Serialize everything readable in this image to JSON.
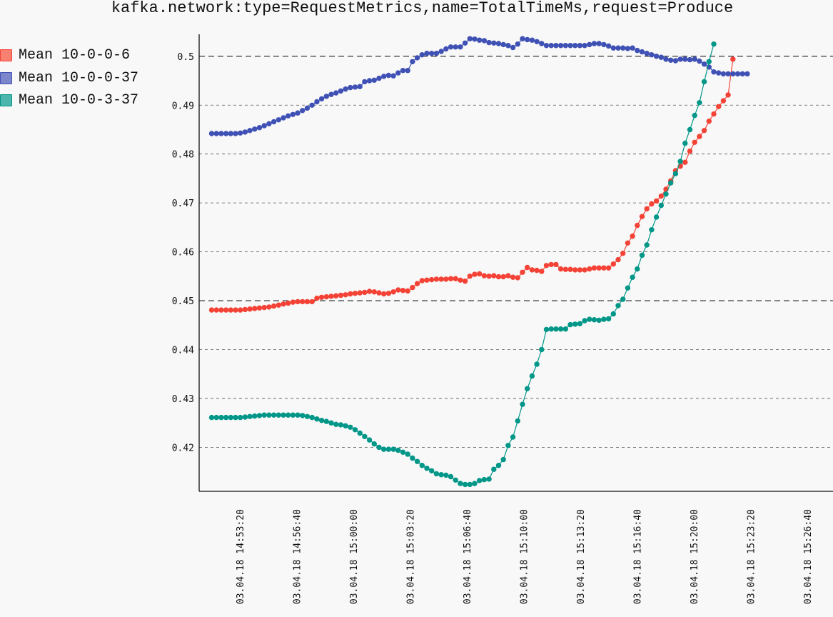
{
  "chart_data": {
    "type": "line",
    "title": "kafka.network:type=RequestMetrics,name=TotalTimeMs,request=Produce",
    "xlabel": "",
    "ylabel": "",
    "ylim": [
      0.411,
      0.5045
    ],
    "y_ticks": [
      0.42,
      0.43,
      0.44,
      0.45,
      0.46,
      0.47,
      0.48,
      0.49,
      0.5
    ],
    "y_major_ticks": [
      0.45,
      0.5
    ],
    "x_ticks": [
      "03.04.18 14:53:20",
      "03.04.18 14:56:40",
      "03.04.18 15:00:00",
      "03.04.18 15:03:20",
      "03.04.18 15:06:40",
      "03.04.18 15:10:00",
      "03.04.18 15:13:20",
      "03.04.18 15:16:40",
      "03.04.18 15:20:00",
      "03.04.18 15:23:20",
      "03.04.18 15:26:40"
    ],
    "x_start": "03.04.18 14:52:17",
    "x_interval_seconds": 15,
    "grid": "horizontal dashed",
    "legend_placement": "left",
    "series": [
      {
        "name": "Mean 10-0-0-6",
        "color": "#f44336",
        "fill": "#f88070",
        "values": [
          0.4481,
          0.4481,
          0.4481,
          0.4481,
          0.4481,
          0.4481,
          0.4481,
          0.4482,
          0.4483,
          0.4484,
          0.4485,
          0.4486,
          0.4487,
          0.4489,
          0.4491,
          0.4493,
          0.4495,
          0.4497,
          0.4498,
          0.4498,
          0.4498,
          0.4498,
          0.4505,
          0.4507,
          0.4508,
          0.4509,
          0.451,
          0.4511,
          0.4512,
          0.4514,
          0.4515,
          0.4516,
          0.4517,
          0.4519,
          0.4518,
          0.4516,
          0.4514,
          0.4515,
          0.4518,
          0.4522,
          0.4521,
          0.452,
          0.4527,
          0.4535,
          0.4541,
          0.4542,
          0.4543,
          0.4544,
          0.4544,
          0.4544,
          0.4545,
          0.4545,
          0.4542,
          0.454,
          0.455,
          0.4554,
          0.4555,
          0.4551,
          0.455,
          0.4551,
          0.4549,
          0.4549,
          0.4551,
          0.4548,
          0.4547,
          0.4558,
          0.4568,
          0.4563,
          0.4562,
          0.456,
          0.4572,
          0.4574,
          0.4574,
          0.4565,
          0.4564,
          0.4564,
          0.4563,
          0.4563,
          0.4563,
          0.4565,
          0.4567,
          0.4567,
          0.4567,
          0.4567,
          0.4575,
          0.4584,
          0.4597,
          0.4618,
          0.4632,
          0.4654,
          0.4672,
          0.4688,
          0.4698,
          0.4704,
          0.4714,
          0.4728,
          0.4745,
          0.4766,
          0.4775,
          0.4783,
          0.4806,
          0.4824,
          0.4836,
          0.4848,
          0.4867,
          0.4882,
          0.4897,
          0.4909,
          0.4921,
          0.4994
        ]
      },
      {
        "name": "Mean 10-0-0-37",
        "color": "#3f51b5",
        "fill": "#7c86cc",
        "values": [
          0.4842,
          0.4842,
          0.4842,
          0.4842,
          0.4842,
          0.4842,
          0.4843,
          0.4845,
          0.4848,
          0.4851,
          0.4854,
          0.4858,
          0.4862,
          0.4866,
          0.487,
          0.4874,
          0.4878,
          0.4881,
          0.4884,
          0.4889,
          0.4894,
          0.49,
          0.4907,
          0.4913,
          0.4918,
          0.4922,
          0.4925,
          0.4929,
          0.4933,
          0.4936,
          0.4937,
          0.4938,
          0.4948,
          0.495,
          0.4951,
          0.4955,
          0.4959,
          0.4961,
          0.496,
          0.4966,
          0.4971,
          0.4971,
          0.4989,
          0.4997,
          0.5003,
          0.5006,
          0.5006,
          0.5006,
          0.501,
          0.5015,
          0.5019,
          0.5019,
          0.5019,
          0.5027,
          0.5036,
          0.5035,
          0.5033,
          0.5032,
          0.5028,
          0.5027,
          0.5026,
          0.5024,
          0.5022,
          0.5018,
          0.5025,
          0.5036,
          0.5034,
          0.5033,
          0.503,
          0.5026,
          0.5022,
          0.5022,
          0.5022,
          0.5022,
          0.5022,
          0.5022,
          0.5022,
          0.5022,
          0.5022,
          0.5024,
          0.5026,
          0.5026,
          0.5024,
          0.5021,
          0.5017,
          0.5017,
          0.5017,
          0.5016,
          0.5017,
          0.5012,
          0.5009,
          0.5006,
          0.5003,
          0.5,
          0.4998,
          0.4994,
          0.4992,
          0.4991,
          0.4994,
          0.4994,
          0.4993,
          0.4994,
          0.499,
          0.4984,
          0.4978,
          0.4968,
          0.4966,
          0.4964,
          0.4964,
          0.4964,
          0.4964,
          0.4964,
          0.4964
        ]
      },
      {
        "name": "Mean 10-0-3-37",
        "color": "#009688",
        "fill": "#4db6ac",
        "values": [
          0.4261,
          0.4261,
          0.4261,
          0.4261,
          0.4261,
          0.4261,
          0.4261,
          0.4262,
          0.4263,
          0.4264,
          0.4265,
          0.4266,
          0.4266,
          0.4266,
          0.4266,
          0.4266,
          0.4266,
          0.4266,
          0.4266,
          0.4265,
          0.4263,
          0.4261,
          0.4258,
          0.4255,
          0.4253,
          0.425,
          0.4247,
          0.4246,
          0.4244,
          0.4241,
          0.4236,
          0.4229,
          0.4222,
          0.4215,
          0.4207,
          0.42,
          0.4196,
          0.4196,
          0.4196,
          0.4194,
          0.419,
          0.4186,
          0.4178,
          0.4171,
          0.4163,
          0.4157,
          0.4152,
          0.4146,
          0.4144,
          0.4143,
          0.414,
          0.4133,
          0.4126,
          0.4124,
          0.4124,
          0.4126,
          0.4132,
          0.4134,
          0.4135,
          0.4155,
          0.4163,
          0.4175,
          0.4204,
          0.4221,
          0.4254,
          0.4288,
          0.432,
          0.4346,
          0.437,
          0.44,
          0.4441,
          0.4442,
          0.4442,
          0.4442,
          0.4442,
          0.4451,
          0.4452,
          0.4453,
          0.4459,
          0.4462,
          0.4461,
          0.446,
          0.4462,
          0.4463,
          0.4473,
          0.449,
          0.4503,
          0.4526,
          0.4548,
          0.4565,
          0.4593,
          0.4614,
          0.4645,
          0.4671,
          0.4695,
          0.4718,
          0.4741,
          0.476,
          0.4785,
          0.4822,
          0.485,
          0.4879,
          0.4905,
          0.4948,
          0.4989,
          0.5025
        ]
      }
    ]
  }
}
